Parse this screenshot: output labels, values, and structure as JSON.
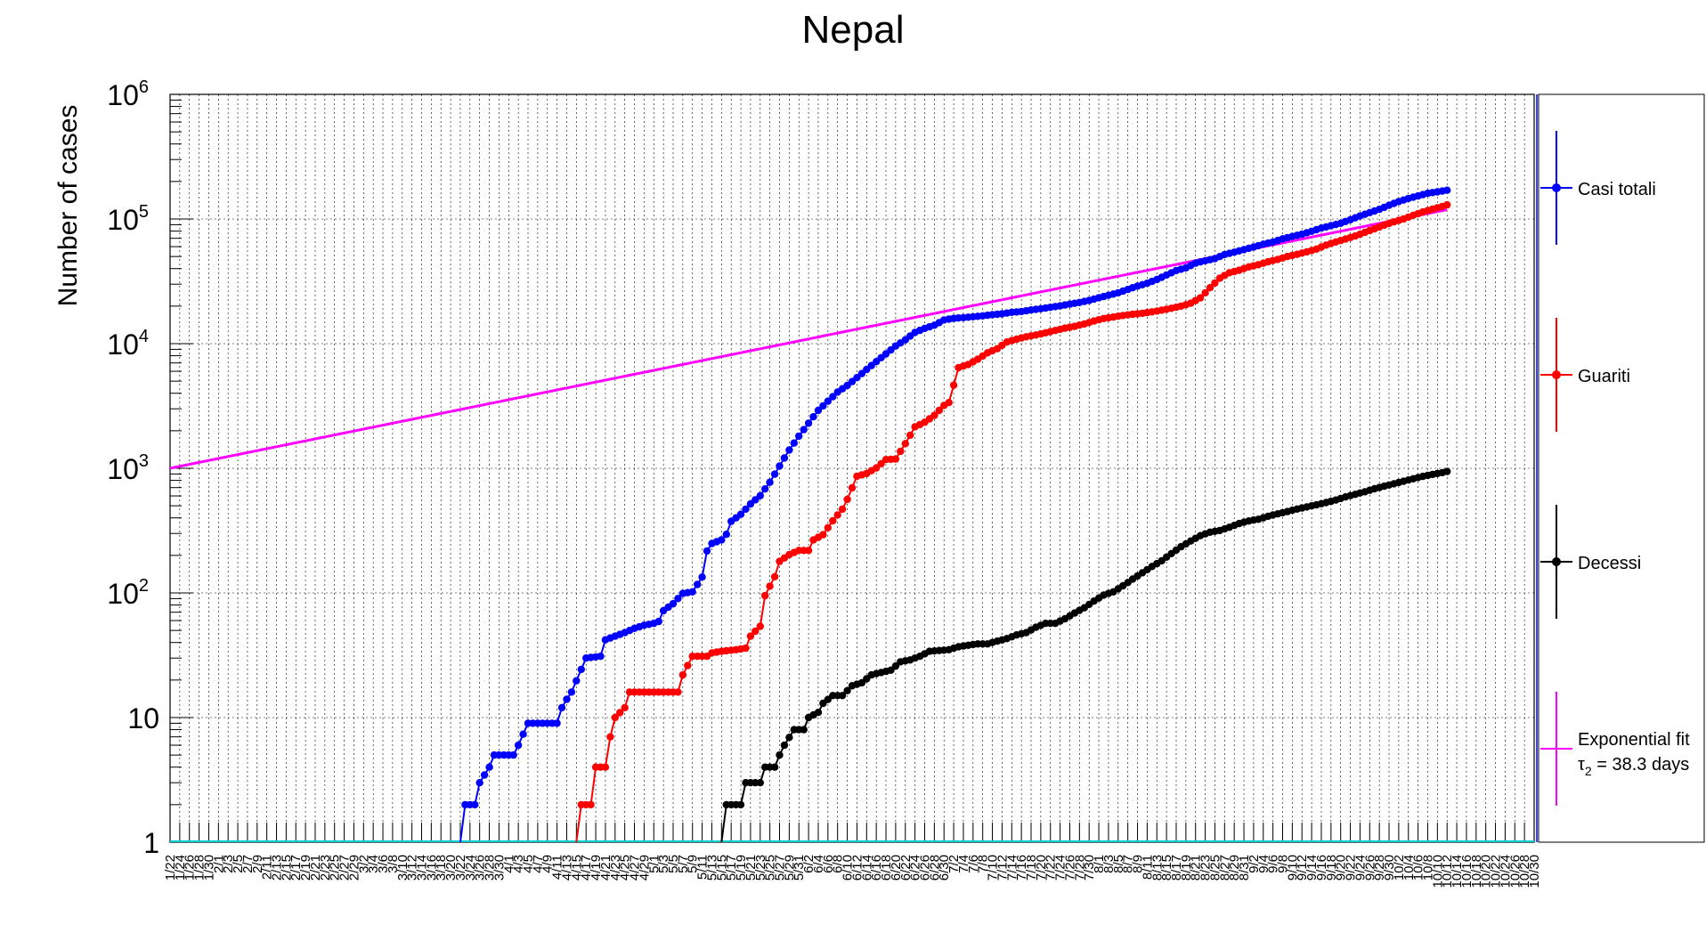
{
  "chart_data": {
    "type": "line",
    "title": "Nepal",
    "ylabel": "Number of cases",
    "xlabel": "",
    "yscale": "log",
    "ylim": [
      1,
      1000000
    ],
    "x_start_day": 0,
    "x_end_day": 282,
    "y_tick_labels": [
      {
        "value": 1,
        "base": "1",
        "exp": ""
      },
      {
        "value": 10,
        "base": "10",
        "exp": ""
      },
      {
        "value": 100,
        "base": "10",
        "exp": "2"
      },
      {
        "value": 1000,
        "base": "10",
        "exp": "3"
      },
      {
        "value": 10000,
        "base": "10",
        "exp": "4"
      },
      {
        "value": 100000,
        "base": "10",
        "exp": "5"
      },
      {
        "value": 1000000,
        "base": "10",
        "exp": "6"
      }
    ],
    "x_tick_labels": [
      "1/22",
      "1/24",
      "1/26",
      "1/28",
      "1/30",
      "2/1",
      "2/3",
      "2/5",
      "2/7",
      "2/9",
      "2/11",
      "2/13",
      "2/15",
      "2/17",
      "2/19",
      "2/21",
      "2/23",
      "2/25",
      "2/27",
      "2/29",
      "3/2",
      "3/4",
      "3/6",
      "3/8",
      "3/10",
      "3/12",
      "3/14",
      "3/16",
      "3/18",
      "3/20",
      "3/22",
      "3/24",
      "3/26",
      "3/28",
      "3/30",
      "4/1",
      "4/3",
      "4/5",
      "4/7",
      "4/9",
      "4/11",
      "4/13",
      "4/15",
      "4/17",
      "4/19",
      "4/21",
      "4/23",
      "4/25",
      "4/27",
      "4/29",
      "5/1",
      "5/3",
      "5/5",
      "5/7",
      "5/9",
      "5/11",
      "5/13",
      "5/15",
      "5/17",
      "5/19",
      "5/21",
      "5/23",
      "5/25",
      "5/27",
      "5/29",
      "5/31",
      "6/2",
      "6/4",
      "6/6",
      "6/8",
      "6/10",
      "6/12",
      "6/14",
      "6/16",
      "6/18",
      "6/20",
      "6/22",
      "6/24",
      "6/26",
      "6/28",
      "6/30",
      "7/2",
      "7/4",
      "7/6",
      "7/8",
      "7/10",
      "7/12",
      "7/14",
      "7/16",
      "7/18",
      "7/20",
      "7/22",
      "7/24",
      "7/26",
      "7/28",
      "7/30",
      "8/1",
      "8/3",
      "8/5",
      "8/7",
      "8/9",
      "8/11",
      "8/13",
      "8/15",
      "8/17",
      "8/19",
      "8/21",
      "8/23",
      "8/25",
      "8/27",
      "8/29",
      "8/31",
      "9/2",
      "9/4",
      "9/6",
      "9/8",
      "9/10",
      "9/12",
      "9/14",
      "9/16",
      "9/18",
      "9/20",
      "9/22",
      "9/24",
      "9/26",
      "9/28",
      "9/30",
      "10/2",
      "10/4",
      "10/6",
      "10/8",
      "10/10",
      "10/12",
      "10/14",
      "10/16",
      "10/18",
      "10/20",
      "10/22",
      "10/24",
      "10/26",
      "10/28",
      "10/30"
    ],
    "series": [
      {
        "name": "Casi totali",
        "color": "#0000ff",
        "start_day": 60,
        "points": [
          [
            60,
            1
          ],
          [
            61,
            2
          ],
          [
            63,
            2
          ],
          [
            64,
            3
          ],
          [
            66,
            4
          ],
          [
            67,
            5
          ],
          [
            71,
            5
          ],
          [
            72,
            6
          ],
          [
            74,
            9
          ],
          [
            80,
            9
          ],
          [
            81,
            12
          ],
          [
            82,
            14
          ],
          [
            83,
            16
          ],
          [
            86,
            30
          ],
          [
            89,
            31
          ],
          [
            90,
            42
          ],
          [
            92,
            45
          ],
          [
            94,
            48
          ],
          [
            96,
            52
          ],
          [
            98,
            55
          ],
          [
            100,
            57
          ],
          [
            101,
            59
          ],
          [
            102,
            72
          ],
          [
            104,
            82
          ],
          [
            106,
            99
          ],
          [
            108,
            102
          ],
          [
            110,
            134
          ],
          [
            111,
            217
          ],
          [
            112,
            249
          ],
          [
            114,
            266
          ],
          [
            115,
            295
          ],
          [
            116,
            375
          ],
          [
            118,
            427
          ],
          [
            120,
            517
          ],
          [
            122,
            603
          ],
          [
            124,
            772
          ],
          [
            126,
            1042
          ],
          [
            128,
            1401
          ],
          [
            130,
            1811
          ],
          [
            132,
            2300
          ],
          [
            134,
            2912
          ],
          [
            136,
            3448
          ],
          [
            138,
            4085
          ],
          [
            140,
            4614
          ],
          [
            142,
            5335
          ],
          [
            144,
            6211
          ],
          [
            146,
            7177
          ],
          [
            148,
            8274
          ],
          [
            150,
            9561
          ],
          [
            152,
            10728
          ],
          [
            154,
            12309
          ],
          [
            156,
            13248
          ],
          [
            158,
            14046
          ],
          [
            160,
            15491
          ],
          [
            162,
            15963
          ],
          [
            164,
            16168
          ],
          [
            166,
            16422
          ],
          [
            168,
            16719
          ],
          [
            170,
            17061
          ],
          [
            172,
            17344
          ],
          [
            174,
            17844
          ],
          [
            176,
            18094
          ],
          [
            178,
            18613
          ],
          [
            180,
            19063
          ],
          [
            182,
            19547
          ],
          [
            184,
            20086
          ],
          [
            186,
            20750
          ],
          [
            188,
            21390
          ],
          [
            190,
            22214
          ],
          [
            192,
            23310
          ],
          [
            194,
            24432
          ],
          [
            196,
            25572
          ],
          [
            198,
            27241
          ],
          [
            200,
            28938
          ],
          [
            202,
            30483
          ],
          [
            204,
            32678
          ],
          [
            206,
            35529
          ],
          [
            208,
            38561
          ],
          [
            210,
            40529
          ],
          [
            212,
            44235
          ],
          [
            214,
            46257
          ],
          [
            216,
            48137
          ],
          [
            218,
            51919
          ],
          [
            220,
            54160
          ],
          [
            222,
            56788
          ],
          [
            224,
            59573
          ],
          [
            226,
            62796
          ],
          [
            228,
            65275
          ],
          [
            230,
            69300
          ],
          [
            232,
            72493
          ],
          [
            234,
            75529
          ],
          [
            236,
            79728
          ],
          [
            238,
            84570
          ],
          [
            240,
            88373
          ],
          [
            242,
            92366
          ],
          [
            244,
            98617
          ],
          [
            246,
            105684
          ],
          [
            248,
            112522
          ],
          [
            250,
            119594
          ],
          [
            252,
            128793
          ],
          [
            254,
            138082
          ],
          [
            256,
            146153
          ],
          [
            258,
            153008
          ],
          [
            260,
            160749
          ],
          [
            262,
            165252
          ],
          [
            264,
            170132
          ]
        ]
      },
      {
        "name": "Guariti",
        "color": "#ff0000",
        "start_day": 85,
        "points": [
          [
            84,
            1
          ],
          [
            85,
            2
          ],
          [
            87,
            2
          ],
          [
            88,
            4
          ],
          [
            90,
            4
          ],
          [
            91,
            7
          ],
          [
            92,
            10
          ],
          [
            94,
            12
          ],
          [
            95,
            16
          ],
          [
            105,
            16
          ],
          [
            106,
            22
          ],
          [
            108,
            31
          ],
          [
            111,
            31
          ],
          [
            112,
            33
          ],
          [
            114,
            34
          ],
          [
            117,
            35
          ],
          [
            119,
            36
          ],
          [
            120,
            45
          ],
          [
            122,
            54
          ],
          [
            123,
            95
          ],
          [
            125,
            135
          ],
          [
            126,
            179
          ],
          [
            128,
            203
          ],
          [
            130,
            219
          ],
          [
            132,
            219
          ],
          [
            133,
            266
          ],
          [
            135,
            293
          ],
          [
            137,
            379
          ],
          [
            139,
            470
          ],
          [
            140,
            562
          ],
          [
            142,
            862
          ],
          [
            144,
            908
          ],
          [
            146,
            1007
          ],
          [
            148,
            1175
          ],
          [
            150,
            1186
          ],
          [
            152,
            1576
          ],
          [
            154,
            2153
          ],
          [
            156,
            2339
          ],
          [
            158,
            2656
          ],
          [
            160,
            3195
          ],
          [
            161,
            3364
          ],
          [
            163,
            6416
          ],
          [
            165,
            6811
          ],
          [
            167,
            7499
          ],
          [
            169,
            8443
          ],
          [
            171,
            9111
          ],
          [
            173,
            10294
          ],
          [
            175,
            10861
          ],
          [
            177,
            11359
          ],
          [
            179,
            11726
          ],
          [
            181,
            12216
          ],
          [
            183,
            12766
          ],
          [
            185,
            13318
          ],
          [
            187,
            13754
          ],
          [
            189,
            14388
          ],
          [
            191,
            15176
          ],
          [
            193,
            15894
          ],
          [
            195,
            16362
          ],
          [
            197,
            16810
          ],
          [
            199,
            17206
          ],
          [
            201,
            17514
          ],
          [
            203,
            17987
          ],
          [
            205,
            18549
          ],
          [
            207,
            19215
          ],
          [
            209,
            19982
          ],
          [
            211,
            21103
          ],
          [
            213,
            23285
          ],
          [
            215,
            28100
          ],
          [
            217,
            33485
          ],
          [
            219,
            37082
          ],
          [
            221,
            38776
          ],
          [
            223,
            41290
          ],
          [
            225,
            42988
          ],
          [
            227,
            45416
          ],
          [
            229,
            47401
          ],
          [
            231,
            50012
          ],
          [
            233,
            52014
          ],
          [
            235,
            54463
          ],
          [
            237,
            57389
          ],
          [
            239,
            61779
          ],
          [
            241,
            65402
          ],
          [
            243,
            69076
          ],
          [
            245,
            73023
          ],
          [
            247,
            78099
          ],
          [
            249,
            83409
          ],
          [
            251,
            89301
          ],
          [
            253,
            94948
          ],
          [
            255,
            99919
          ],
          [
            257,
            107118
          ],
          [
            259,
            113804
          ],
          [
            261,
            120114
          ],
          [
            263,
            126008
          ],
          [
            264,
            129812
          ]
        ]
      },
      {
        "name": "Decessi",
        "color": "#000000",
        "start_day": 115,
        "points": [
          [
            114,
            1
          ],
          [
            115,
            2
          ],
          [
            118,
            2
          ],
          [
            119,
            3
          ],
          [
            122,
            3
          ],
          [
            123,
            4
          ],
          [
            125,
            4
          ],
          [
            126,
            5
          ],
          [
            127,
            6
          ],
          [
            129,
            8
          ],
          [
            131,
            8
          ],
          [
            132,
            10
          ],
          [
            134,
            11
          ],
          [
            135,
            13
          ],
          [
            137,
            15
          ],
          [
            139,
            15
          ],
          [
            141,
            18
          ],
          [
            143,
            19
          ],
          [
            145,
            22
          ],
          [
            147,
            23
          ],
          [
            149,
            24
          ],
          [
            151,
            28
          ],
          [
            153,
            29
          ],
          [
            155,
            31
          ],
          [
            157,
            34
          ],
          [
            161,
            35
          ],
          [
            163,
            37
          ],
          [
            165,
            38
          ],
          [
            167,
            39
          ],
          [
            169,
            39
          ],
          [
            171,
            41
          ],
          [
            173,
            43
          ],
          [
            175,
            46
          ],
          [
            177,
            48
          ],
          [
            179,
            53
          ],
          [
            181,
            57
          ],
          [
            183,
            57
          ],
          [
            185,
            62
          ],
          [
            187,
            69
          ],
          [
            189,
            76
          ],
          [
            191,
            86
          ],
          [
            193,
            96
          ],
          [
            195,
            102
          ],
          [
            197,
            114
          ],
          [
            199,
            129
          ],
          [
            201,
            145
          ],
          [
            203,
            163
          ],
          [
            205,
            181
          ],
          [
            207,
            207
          ],
          [
            209,
            235
          ],
          [
            211,
            261
          ],
          [
            213,
            288
          ],
          [
            215,
            307
          ],
          [
            217,
            317
          ],
          [
            219,
            336
          ],
          [
            221,
            360
          ],
          [
            223,
            378
          ],
          [
            225,
            390
          ],
          [
            227,
            412
          ],
          [
            229,
            431
          ],
          [
            231,
            450
          ],
          [
            233,
            471
          ],
          [
            235,
            490
          ],
          [
            237,
            509
          ],
          [
            239,
            531
          ],
          [
            241,
            556
          ],
          [
            243,
            589
          ],
          [
            245,
            618
          ],
          [
            247,
            648
          ],
          [
            249,
            685
          ],
          [
            251,
            718
          ],
          [
            253,
            751
          ],
          [
            255,
            787
          ],
          [
            257,
            824
          ],
          [
            259,
            861
          ],
          [
            261,
            893
          ],
          [
            263,
            923
          ],
          [
            264,
            943
          ]
        ]
      }
    ],
    "fit": {
      "name": "Exponential fit",
      "label_line2_tau": "τ",
      "label_line2_sub": "2",
      "label_line2_rest": " = 38.3 days",
      "color": "#ff00ff",
      "y_start": 1000,
      "doubling_days": 38.3,
      "x_from": 0,
      "x_to": 264
    },
    "legend": {
      "placement": "right",
      "entries": [
        "Casi totali",
        "Guariti",
        "Decessi",
        "Exponential fit"
      ]
    }
  }
}
